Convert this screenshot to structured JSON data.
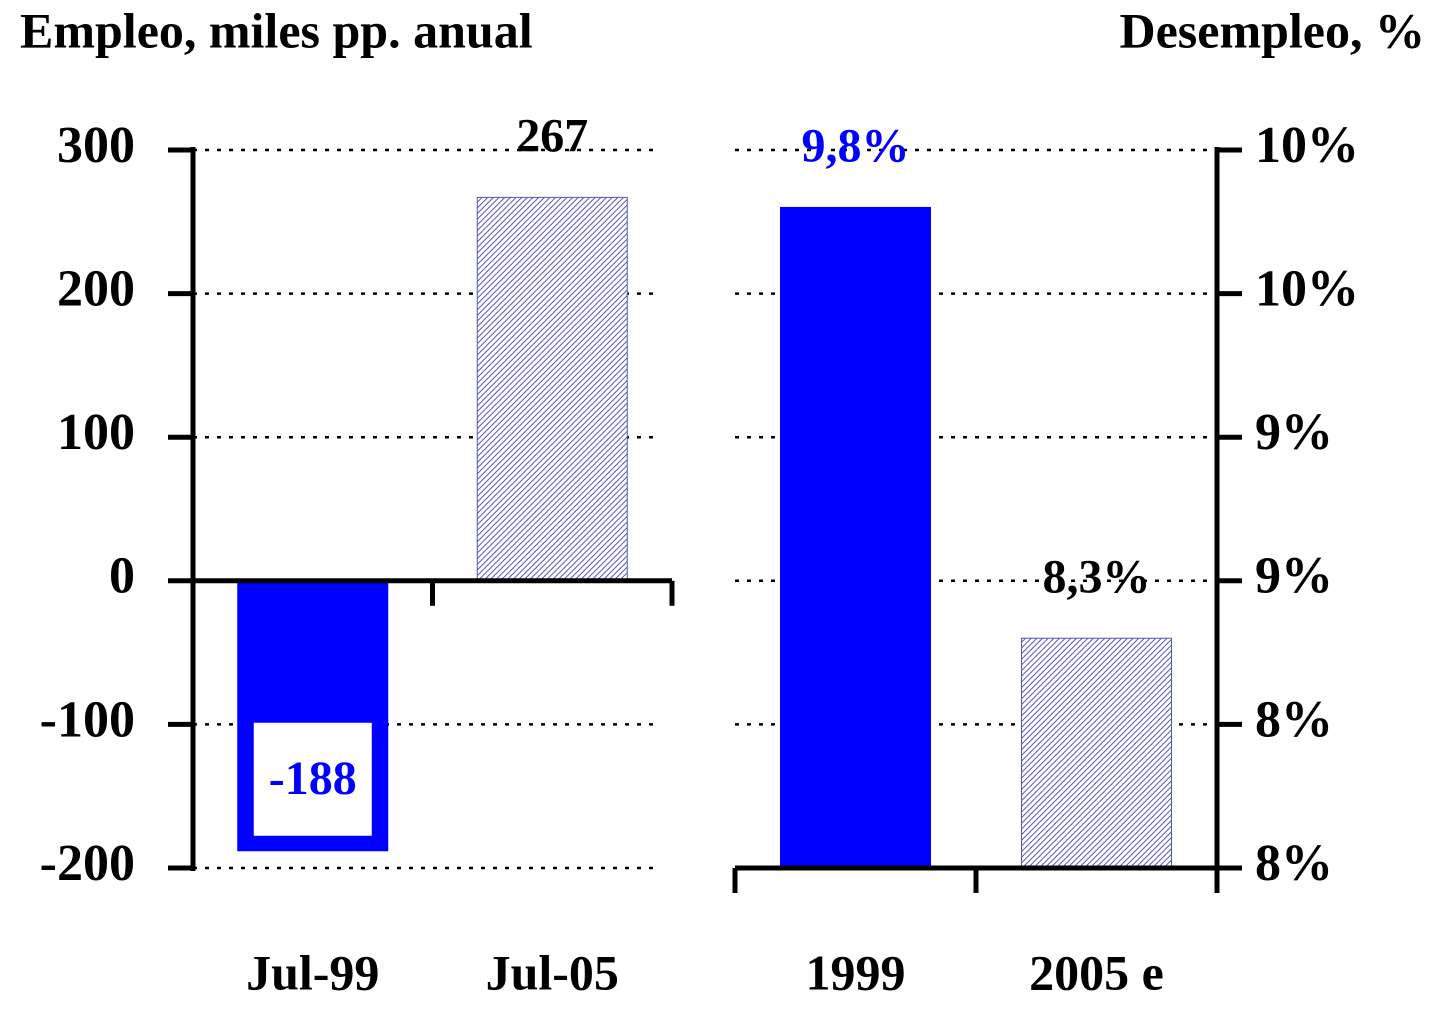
{
  "chart_data": [
    {
      "type": "bar",
      "title": "Empleo, miles pp. anual",
      "y_axis": "left",
      "categories": [
        "Jul-99",
        "Jul-05"
      ],
      "values": [
        -188,
        267
      ],
      "colors": [
        "#0000ff",
        "#5555bb"
      ],
      "ylim": [
        -200,
        300
      ],
      "yticks": [
        -200,
        -100,
        0,
        100,
        200,
        300
      ],
      "grid": true
    },
    {
      "type": "bar",
      "title": "Desempleo, %",
      "y_axis": "right",
      "categories": [
        "1999",
        "2005 e"
      ],
      "values": [
        9.8,
        8.3
      ],
      "value_labels": [
        "9,8%",
        "8,3%"
      ],
      "colors": [
        "#0000ff",
        "#5555bb"
      ],
      "ylim": [
        7.5,
        10
      ],
      "yticks": [
        {
          "value": 7.5,
          "label": "8%"
        },
        {
          "value": 8,
          "label": "8%"
        },
        {
          "value": 8.5,
          "label": "9%"
        },
        {
          "value": 9,
          "label": "9%"
        },
        {
          "value": 9.5,
          "label": "10%"
        },
        {
          "value": 10,
          "label": "10%"
        }
      ],
      "grid": true
    }
  ]
}
